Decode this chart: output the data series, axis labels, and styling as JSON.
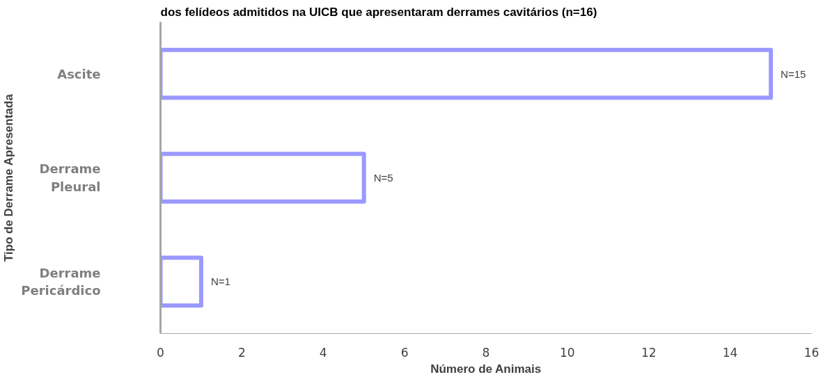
{
  "chart_data": {
    "type": "bar",
    "orientation": "horizontal",
    "title": "dos felídeos admitidos na UICB que apresentaram derrames cavitários (n=16)",
    "xlabel": "Número de Animais",
    "ylabel": "Tipo de Derrame Apresentada",
    "categories": [
      "Ascite",
      "Derrame\nPleural",
      "Derrame\nPericárdico"
    ],
    "values": [
      15,
      5,
      1
    ],
    "value_labels": [
      "N=15",
      "N=5",
      "N=1"
    ],
    "color": "#9999ff",
    "xlim": [
      0,
      16
    ],
    "xticks": [
      0,
      2,
      4,
      6,
      8,
      10,
      12,
      14,
      16
    ],
    "grid": false
  }
}
